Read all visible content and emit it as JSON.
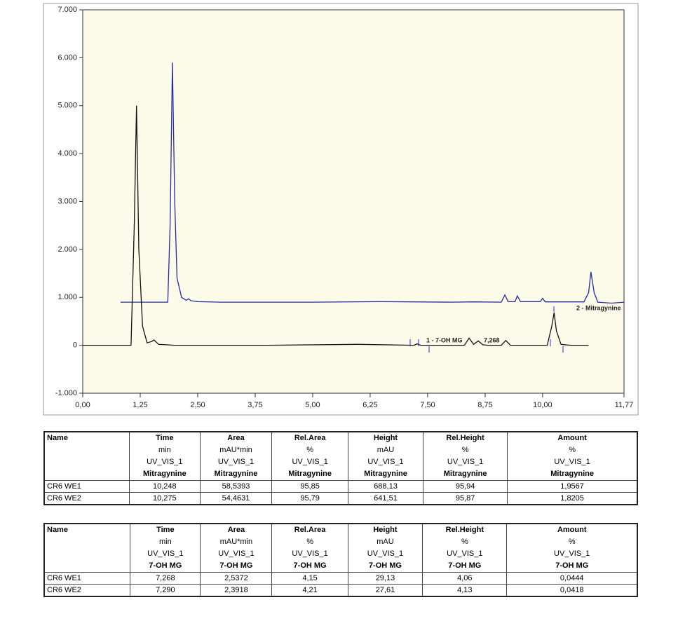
{
  "chart_data": {
    "type": "line",
    "xlim": [
      0,
      11.77
    ],
    "ylim": [
      -1000,
      7000
    ],
    "xticks": [
      {
        "value": 0,
        "label": "0,00"
      },
      {
        "value": 1.25,
        "label": "1,25"
      },
      {
        "value": 2.5,
        "label": "2,50"
      },
      {
        "value": 3.75,
        "label": "3,75"
      },
      {
        "value": 5,
        "label": "5,00"
      },
      {
        "value": 6.25,
        "label": "6,25"
      },
      {
        "value": 7.5,
        "label": "7,50"
      },
      {
        "value": 8.75,
        "label": "8,75"
      },
      {
        "value": 10,
        "label": "10,00"
      },
      {
        "value": 11.77,
        "label": "11,77"
      }
    ],
    "yticks": [
      {
        "value": -1000,
        "label": "-1.000"
      },
      0,
      {
        "value": 1000,
        "label": "1.000"
      },
      {
        "value": 2000,
        "label": "2.000"
      },
      {
        "value": 3000,
        "label": "3.000"
      },
      {
        "value": 4000,
        "label": "4.000"
      },
      {
        "value": 5000,
        "label": "5.000"
      },
      {
        "value": 6000,
        "label": "6.000"
      },
      {
        "value": 7000,
        "label": "7.000"
      }
    ],
    "annotations": [
      "1 - 7-OH MG",
      "7,268",
      "2 - Mitragynine"
    ],
    "series": [
      {
        "color": "#2a2aa0",
        "x": [
          0.82,
          1.85,
          1.9,
          1.95,
          2.0,
          2.05,
          2.15,
          2.25,
          2.3,
          2.35,
          2.5,
          3.0,
          5.0,
          6.5,
          8.0,
          8.5,
          9.1,
          9.18,
          9.25,
          9.4,
          9.45,
          9.52,
          9.95,
          10.0,
          10.06,
          10.9,
          11.0,
          11.05,
          11.12,
          11.2,
          11.5,
          11.77
        ],
        "values": [
          900,
          900,
          2500,
          5900,
          3000,
          1400,
          1000,
          940,
          970,
          930,
          910,
          900,
          900,
          910,
          900,
          905,
          900,
          1050,
          910,
          910,
          1030,
          910,
          910,
          980,
          905,
          905,
          1100,
          1530,
          1100,
          900,
          880,
          900
        ]
      },
      {
        "color": "#111111",
        "x": [
          0,
          1.05,
          1.12,
          1.17,
          1.22,
          1.3,
          1.4,
          1.5,
          1.55,
          1.65,
          2.0,
          4.0,
          6.0,
          7.2,
          7.27,
          7.35,
          8.3,
          8.4,
          8.5,
          8.6,
          8.7,
          8.8,
          9.1,
          9.2,
          9.3,
          10.1,
          10.2,
          10.25,
          10.3,
          10.4,
          10.6,
          11.0
        ],
        "values": [
          0,
          0,
          2500,
          5000,
          2000,
          400,
          50,
          80,
          110,
          20,
          0,
          0,
          20,
          0,
          30,
          0,
          0,
          150,
          20,
          90,
          10,
          0,
          0,
          100,
          0,
          0,
          400,
          680,
          300,
          20,
          0,
          0
        ]
      }
    ]
  },
  "tables": [
    {
      "header": [
        [
          "Name"
        ],
        [
          "Time",
          "min",
          "UV_VIS_1",
          "Mitragynine"
        ],
        [
          "Area",
          "mAU*min",
          "UV_VIS_1",
          "Mitragynine"
        ],
        [
          "Rel.Area",
          "%",
          "UV_VIS_1",
          "Mitragynine"
        ],
        [
          "Height",
          "mAU",
          "UV_VIS_1",
          "Mitragynine"
        ],
        [
          "Rel.Height",
          "%",
          "UV_VIS_1",
          "Mitragynine"
        ],
        [
          "Amount",
          "%",
          "UV_VIS_1",
          "Mitragynine"
        ]
      ],
      "rows": [
        [
          "CR6 WE1",
          "10,248",
          "58,5393",
          "95,85",
          "688,13",
          "95,94",
          "1,9567"
        ],
        [
          "CR6 WE2",
          "10,275",
          "54,4631",
          "95,79",
          "641,51",
          "95,87",
          "1,8205"
        ]
      ]
    },
    {
      "header": [
        [
          "Name"
        ],
        [
          "Time",
          "min",
          "UV_VIS_1",
          "7-OH MG"
        ],
        [
          "Area",
          "mAU*min",
          "UV_VIS_1",
          "7-OH MG"
        ],
        [
          "Rel.Area",
          "%",
          "UV_VIS_1",
          "7-OH MG"
        ],
        [
          "Height",
          "mAU",
          "UV_VIS_1",
          "7-OH MG"
        ],
        [
          "Rel.Height",
          "%",
          "UV_VIS_1",
          "7-OH MG"
        ],
        [
          "Amount",
          "%",
          "UV_VIS_1",
          "7-OH MG"
        ]
      ],
      "rows": [
        [
          "CR6 WE1",
          "7,268",
          "2,5372",
          "4,15",
          "29,13",
          "4,06",
          "0,0444"
        ],
        [
          "CR6 WE2",
          "7,290",
          "2,3918",
          "4,21",
          "27,61",
          "4,13",
          "0,0418"
        ]
      ]
    }
  ]
}
